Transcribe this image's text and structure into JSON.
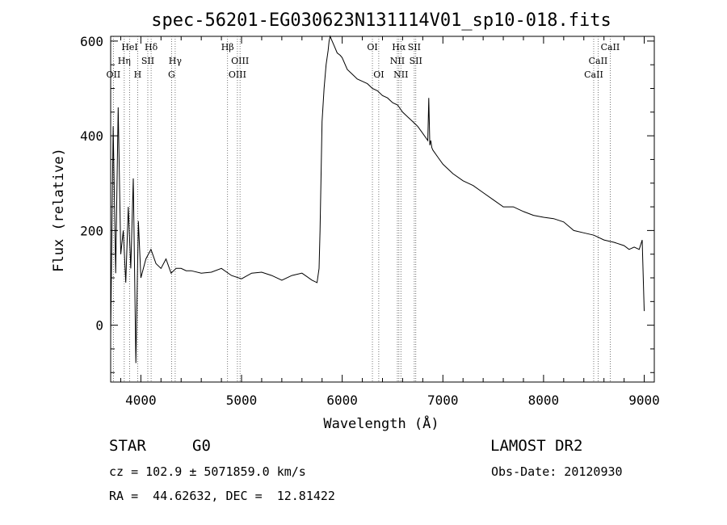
{
  "chart_data": {
    "type": "line",
    "title": "spec-56201-EG030623N131114V01_sp10-018.fits",
    "xlabel": "Wavelength (Å)",
    "ylabel": "Flux (relative)",
    "xlim": [
      3700,
      9100
    ],
    "ylim": [
      -120,
      610
    ],
    "xticks": [
      4000,
      5000,
      6000,
      7000,
      8000,
      9000
    ],
    "yticks": [
      0,
      200,
      400,
      600
    ],
    "grid": false,
    "series": [
      {
        "x": [
          3700,
          3725,
          3750,
          3775,
          3800,
          3825,
          3850,
          3875,
          3900,
          3925,
          3950,
          3975,
          4000,
          4050,
          4100,
          4150,
          4200,
          4250,
          4300,
          4350,
          4400,
          4450,
          4500,
          4600,
          4700,
          4800,
          4900,
          5000,
          5100,
          5200,
          5300,
          5400,
          5500,
          5600,
          5700,
          5750,
          5770,
          5780,
          5800,
          5820,
          5840,
          5860,
          5870,
          5880,
          5900,
          5920,
          5950,
          5980,
          6000,
          6050,
          6100,
          6150,
          6200,
          6250,
          6300,
          6350,
          6400,
          6450,
          6500,
          6550,
          6600,
          6650,
          6700,
          6750,
          6800,
          6850,
          6860,
          6870,
          6880,
          6890,
          6900,
          6950,
          7000,
          7100,
          7200,
          7300,
          7400,
          7500,
          7600,
          7700,
          7800,
          7900,
          8000,
          8100,
          8200,
          8300,
          8400,
          8500,
          8600,
          8700,
          8800,
          8850,
          8900,
          8950,
          8980,
          9000
        ],
        "y": [
          -20,
          420,
          110,
          460,
          150,
          200,
          90,
          250,
          120,
          310,
          -80,
          220,
          100,
          140,
          160,
          130,
          120,
          140,
          110,
          120,
          120,
          115,
          115,
          110,
          112,
          120,
          105,
          98,
          110,
          112,
          105,
          95,
          105,
          110,
          95,
          90,
          120,
          200,
          430,
          500,
          550,
          580,
          600,
          610,
          600,
          590,
          575,
          570,
          565,
          540,
          530,
          520,
          515,
          510,
          500,
          495,
          485,
          480,
          470,
          465,
          450,
          440,
          430,
          420,
          405,
          390,
          480,
          380,
          390,
          375,
          370,
          355,
          340,
          320,
          305,
          295,
          280,
          265,
          250,
          250,
          240,
          232,
          228,
          225,
          218,
          200,
          195,
          190,
          180,
          175,
          168,
          160,
          165,
          160,
          180,
          30
        ]
      }
    ],
    "line_labels": [
      {
        "name": "OII",
        "x": 3727,
        "row": 3
      },
      {
        "name": "Hη",
        "x": 3835,
        "row": 2
      },
      {
        "name": "HeI",
        "x": 3889,
        "row": 1
      },
      {
        "name": "H",
        "x": 3968,
        "row": 3
      },
      {
        "name": "Hδ",
        "x": 4102,
        "row": 1
      },
      {
        "name": "SII",
        "x": 4069,
        "row": 2
      },
      {
        "name": "Hγ",
        "x": 4341,
        "row": 2
      },
      {
        "name": "G",
        "x": 4305,
        "row": 3
      },
      {
        "name": "Hβ",
        "x": 4861,
        "row": 1
      },
      {
        "name": "OIII",
        "x": 4985,
        "row": 2
      },
      {
        "name": "OIII",
        "x": 4959,
        "row": 3
      },
      {
        "name": "OI",
        "x": 6300,
        "row": 1
      },
      {
        "name": "OI",
        "x": 6363,
        "row": 3
      },
      {
        "name": "Hα",
        "x": 6563,
        "row": 1
      },
      {
        "name": "SII",
        "x": 6716,
        "row": 1
      },
      {
        "name": "NII",
        "x": 6548,
        "row": 2
      },
      {
        "name": "SII",
        "x": 6731,
        "row": 2
      },
      {
        "name": "NII",
        "x": 6583,
        "row": 3
      },
      {
        "name": "CaII",
        "x": 8662,
        "row": 1
      },
      {
        "name": "CaII",
        "x": 8542,
        "row": 2
      },
      {
        "name": "CaII",
        "x": 8498,
        "row": 3
      }
    ]
  },
  "info": {
    "object_class": "STAR",
    "subclass": "G0",
    "survey": "LAMOST DR2",
    "redshift_line": "cz = 102.9 ± 5071859.0 km/s",
    "obs_date_line": "Obs-Date: 20120930",
    "coords_line": "RA =  44.62632, DEC =  12.81422"
  }
}
